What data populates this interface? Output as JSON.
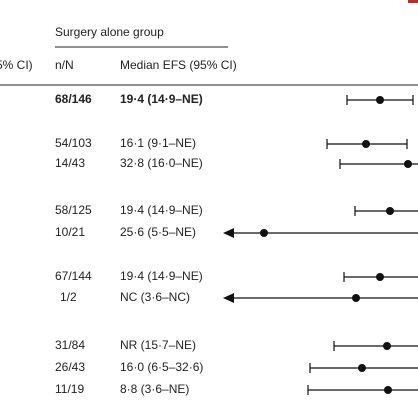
{
  "left_header": "5% CI)",
  "group_title": "Surgery alone group",
  "columns": [
    "n/N",
    "Median EFS (95% CI)"
  ],
  "rows": [
    [
      "68/146",
      "19·4 (14·9–NE)"
    ],
    [
      "54/103",
      "16·1 (9·1–NE)"
    ],
    [
      "14/43",
      "32·8 (16·0–NE)"
    ],
    [
      "58/125",
      "19·4 (14·9–NE)"
    ],
    [
      "10/21",
      "25·6 (5·5–NE)"
    ],
    [
      "67/144",
      "19·4 (14·9–NE)"
    ],
    [
      "1/2",
      "NC (3·6–NC)"
    ],
    [
      "31/84",
      "NR (15·7–NE)"
    ],
    [
      "26/43",
      "16·0 (6·5–32·6)"
    ],
    [
      "11/19",
      "8·8 (3·6–NE)"
    ]
  ]
}
